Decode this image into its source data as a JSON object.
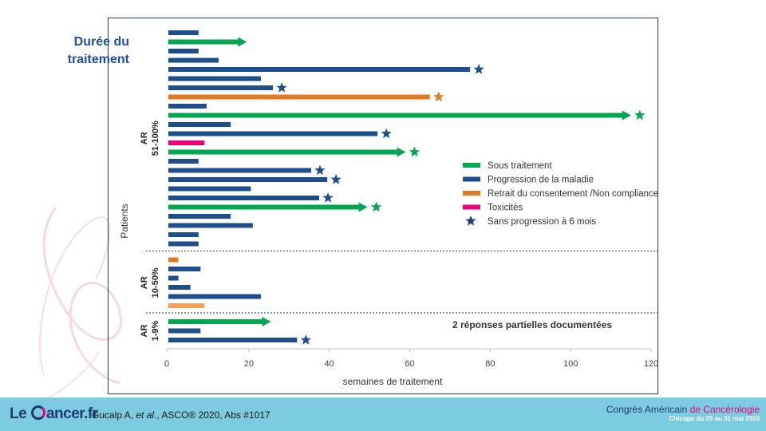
{
  "slide": {
    "title_line1": "Durée du",
    "title_line2": "traitement",
    "note": "2 réponses partielles documentées"
  },
  "footer": {
    "logo_pre": "Le ",
    "logo_post": "ancer.fr",
    "citation_pre": "Gucalp A, ",
    "citation_italic": "et al.",
    "citation_post": ", ASCO® 2020, Abs #1017",
    "congress_line1_pre": "Congrès Américain ",
    "congress_line1_accent": "de Cancérologie",
    "congress_line2": "Chicago du 29 au 31 mai 2020"
  },
  "colors": {
    "sous_traitement": "#00a651",
    "progression": "#1f4e8c",
    "retrait": "#e07b24",
    "retrait_light": "#f0a05a",
    "toxicite": "#e8007d",
    "frame": "#1f3b73"
  },
  "chart_data": {
    "type": "bar",
    "orientation": "horizontal",
    "xlabel": "semaines de traitement",
    "ylabel": "Patients",
    "xlim": [
      0,
      120
    ],
    "xticks": [
      "0",
      "20",
      "40",
      "60",
      "80",
      "100",
      "120"
    ],
    "groups": [
      {
        "line1": "AR",
        "line2": "51-100%"
      },
      {
        "line1": "AR",
        "line2": "10-50%"
      },
      {
        "line1": "AR",
        "line2": "1-9%"
      }
    ],
    "legend": {
      "placement": "right",
      "entries": [
        {
          "key": "sous",
          "label": "Sous traitement"
        },
        {
          "key": "prog",
          "label": "Progression de la maladie"
        },
        {
          "key": "retrait",
          "label": "Retrait du consentement /Non compliance"
        },
        {
          "key": "tox",
          "label": "Toxicités"
        },
        {
          "key": "star",
          "label": "Sans progression à 6 mois"
        }
      ]
    },
    "patients": [
      {
        "group": 0,
        "weeks": 7.5,
        "status": "prog",
        "star": false
      },
      {
        "group": 0,
        "weeks": 19.5,
        "status": "sous",
        "star": false
      },
      {
        "group": 0,
        "weeks": 7.5,
        "status": "prog",
        "star": false
      },
      {
        "group": 0,
        "weeks": 12.5,
        "status": "prog",
        "star": false
      },
      {
        "group": 0,
        "weeks": 75,
        "status": "prog",
        "star": true
      },
      {
        "group": 0,
        "weeks": 23,
        "status": "prog",
        "star": false
      },
      {
        "group": 0,
        "weeks": 26,
        "status": "prog",
        "star": true
      },
      {
        "group": 0,
        "weeks": 65,
        "status": "retrait",
        "star": true
      },
      {
        "group": 0,
        "weeks": 9.5,
        "status": "prog",
        "star": false
      },
      {
        "group": 0,
        "weeks": 115,
        "status": "sous",
        "star": true
      },
      {
        "group": 0,
        "weeks": 15.5,
        "status": "prog",
        "star": false
      },
      {
        "group": 0,
        "weeks": 52,
        "status": "prog",
        "star": true
      },
      {
        "group": 0,
        "weeks": 9,
        "status": "tox",
        "star": false
      },
      {
        "group": 0,
        "weeks": 59,
        "status": "sous",
        "star": true
      },
      {
        "group": 0,
        "weeks": 7.5,
        "status": "prog",
        "star": false
      },
      {
        "group": 0,
        "weeks": 35.5,
        "status": "prog",
        "star": true
      },
      {
        "group": 0,
        "weeks": 39.5,
        "status": "prog",
        "star": true
      },
      {
        "group": 0,
        "weeks": 20.5,
        "status": "prog",
        "star": false
      },
      {
        "group": 0,
        "weeks": 37.5,
        "status": "prog",
        "star": true
      },
      {
        "group": 0,
        "weeks": 49.5,
        "status": "sous",
        "star": true
      },
      {
        "group": 0,
        "weeks": 15.5,
        "status": "prog",
        "star": false
      },
      {
        "group": 0,
        "weeks": 21,
        "status": "prog",
        "star": false
      },
      {
        "group": 0,
        "weeks": 7.5,
        "status": "prog",
        "star": false
      },
      {
        "group": 0,
        "weeks": 7.5,
        "status": "prog",
        "star": false
      },
      {
        "group": 1,
        "weeks": 2.5,
        "status": "retrait",
        "star": false
      },
      {
        "group": 1,
        "weeks": 8,
        "status": "prog",
        "star": false
      },
      {
        "group": 1,
        "weeks": 2.5,
        "status": "prog",
        "star": false
      },
      {
        "group": 1,
        "weeks": 5.5,
        "status": "prog",
        "star": false
      },
      {
        "group": 1,
        "weeks": 23,
        "status": "prog",
        "star": false
      },
      {
        "group": 1,
        "weeks": 9,
        "status": "retrait_light",
        "star": false
      },
      {
        "group": 2,
        "weeks": 25.5,
        "status": "sous",
        "star": false
      },
      {
        "group": 2,
        "weeks": 8,
        "status": "prog",
        "star": false
      },
      {
        "group": 2,
        "weeks": 32,
        "status": "prog",
        "star": true
      }
    ]
  }
}
